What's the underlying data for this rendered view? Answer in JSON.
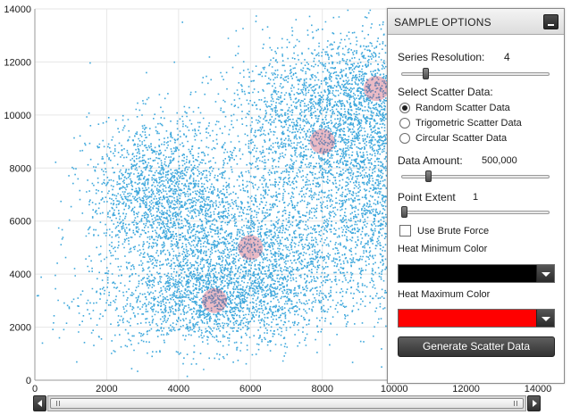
{
  "chart_data": {
    "type": "scatter",
    "title": "",
    "xlabel": "",
    "ylabel": "",
    "xlim": [
      0,
      14000
    ],
    "ylim": [
      0,
      14000
    ],
    "x_ticks": [
      "0",
      "2000",
      "4000",
      "6000",
      "8000",
      "10000",
      "12000",
      "14000"
    ],
    "y_ticks": [
      "0",
      "2000",
      "4000",
      "6000",
      "8000",
      "10000",
      "12000",
      "14000"
    ],
    "grid": true,
    "point_color": "#2a9fd8",
    "hot_color": "#c23a5a",
    "clusters": [
      {
        "cx": 5000,
        "cy": 3000,
        "spread_x": 1700,
        "spread_y": 900
      },
      {
        "cx": 6000,
        "cy": 5000,
        "spread_x": 1500,
        "spread_y": 1300
      },
      {
        "cx": 8000,
        "cy": 9000,
        "spread_x": 1500,
        "spread_y": 1500
      },
      {
        "cx": 9500,
        "cy": 11000,
        "spread_x": 1600,
        "spread_y": 1200
      },
      {
        "cx": 3500,
        "cy": 7000,
        "spread_x": 1000,
        "spread_y": 1400
      },
      {
        "cx": 10000,
        "cy": 6500,
        "spread_x": 1100,
        "spread_y": 1800
      }
    ]
  },
  "panel": {
    "title": "SAMPLE OPTIONS",
    "series_resolution_label": "Series Resolution:",
    "series_resolution_value": "4",
    "series_resolution_fraction": 0.15,
    "select_scatter_label": "Select Scatter Data:",
    "options": [
      {
        "label": "Random Scatter Data",
        "checked": true
      },
      {
        "label": "Trigometric Scatter Data",
        "checked": false
      },
      {
        "label": "Circular Scatter Data",
        "checked": false
      }
    ],
    "data_amount_label": "Data Amount:",
    "data_amount_value": "500,000",
    "data_amount_fraction": 0.17,
    "point_extent_label": "Point Extent",
    "point_extent_value": "1",
    "point_extent_fraction": 0.0,
    "brute_force_label": "Use Brute Force",
    "brute_force_checked": false,
    "heat_min_label": "Heat Minimum Color",
    "heat_min_color": "#000000",
    "heat_max_label": "Heat Maximum Color",
    "heat_max_color": "#ff0000",
    "generate_label": "Generate Scatter Data"
  }
}
